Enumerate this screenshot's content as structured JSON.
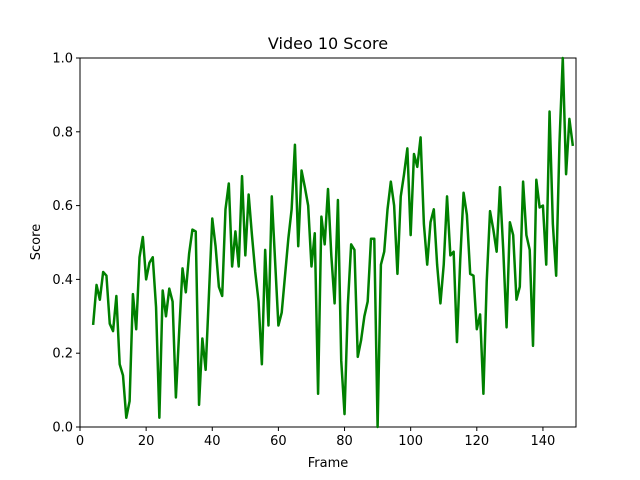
{
  "chart_data": {
    "type": "line",
    "title": "Video 10 Score",
    "xlabel": "Frame",
    "ylabel": "Score",
    "xlim": [
      0,
      150
    ],
    "ylim": [
      0.0,
      1.0
    ],
    "grid": false,
    "x_ticks": [
      "0",
      "20",
      "40",
      "60",
      "80",
      "100",
      "120",
      "140"
    ],
    "y_ticks": [
      "0.0",
      "0.2",
      "0.4",
      "0.6",
      "0.8",
      "1.0"
    ],
    "series": [
      {
        "color": "#008000",
        "x": [
          4,
          5,
          6,
          7,
          8,
          9,
          10,
          11,
          12,
          13,
          14,
          15,
          16,
          17,
          18,
          19,
          20,
          21,
          22,
          23,
          24,
          25,
          26,
          27,
          28,
          29,
          30,
          31,
          32,
          33,
          34,
          35,
          36,
          37,
          38,
          39,
          40,
          41,
          42,
          43,
          44,
          45,
          46,
          47,
          48,
          49,
          50,
          51,
          52,
          53,
          54,
          55,
          56,
          57,
          58,
          59,
          60,
          61,
          62,
          63,
          64,
          65,
          66,
          67,
          68,
          69,
          70,
          71,
          72,
          73,
          74,
          75,
          76,
          77,
          78,
          79,
          80,
          81,
          82,
          83,
          84,
          85,
          86,
          87,
          88,
          89,
          90,
          91,
          92,
          93,
          94,
          95,
          96,
          97,
          98,
          99,
          100,
          101,
          102,
          103,
          104,
          105,
          106,
          107,
          108,
          109,
          110,
          111,
          112,
          113,
          114,
          115,
          116,
          117,
          118,
          119,
          120,
          121,
          122,
          123,
          124,
          125,
          126,
          127,
          128,
          129,
          130,
          131,
          132,
          133,
          134,
          135,
          136,
          137,
          138,
          139,
          140,
          141,
          142,
          143,
          144,
          145,
          146,
          147,
          148,
          149
        ],
        "values": [
          0.28,
          0.385,
          0.345,
          0.42,
          0.41,
          0.28,
          0.26,
          0.355,
          0.17,
          0.14,
          0.025,
          0.07,
          0.36,
          0.265,
          0.46,
          0.515,
          0.4,
          0.445,
          0.46,
          0.325,
          0.025,
          0.37,
          0.3,
          0.375,
          0.34,
          0.08,
          0.26,
          0.43,
          0.365,
          0.47,
          0.535,
          0.53,
          0.06,
          0.24,
          0.155,
          0.36,
          0.565,
          0.49,
          0.38,
          0.355,
          0.59,
          0.66,
          0.435,
          0.53,
          0.435,
          0.68,
          0.465,
          0.63,
          0.52,
          0.42,
          0.34,
          0.17,
          0.48,
          0.275,
          0.625,
          0.45,
          0.275,
          0.31,
          0.41,
          0.51,
          0.59,
          0.765,
          0.49,
          0.695,
          0.65,
          0.6,
          0.435,
          0.525,
          0.09,
          0.57,
          0.495,
          0.645,
          0.465,
          0.335,
          0.615,
          0.18,
          0.035,
          0.33,
          0.495,
          0.48,
          0.19,
          0.235,
          0.3,
          0.34,
          0.51,
          0.51,
          0.0,
          0.44,
          0.475,
          0.59,
          0.665,
          0.6,
          0.415,
          0.625,
          0.685,
          0.755,
          0.52,
          0.74,
          0.705,
          0.785,
          0.55,
          0.44,
          0.555,
          0.59,
          0.44,
          0.335,
          0.44,
          0.625,
          0.465,
          0.475,
          0.23,
          0.455,
          0.635,
          0.575,
          0.415,
          0.41,
          0.265,
          0.305,
          0.09,
          0.395,
          0.585,
          0.535,
          0.475,
          0.65,
          0.48,
          0.27,
          0.555,
          0.52,
          0.345,
          0.38,
          0.665,
          0.52,
          0.48,
          0.22,
          0.67,
          0.595,
          0.6,
          0.44,
          0.855,
          0.55,
          0.41,
          0.77,
          1.0,
          0.685,
          0.835,
          0.765
        ]
      }
    ]
  }
}
